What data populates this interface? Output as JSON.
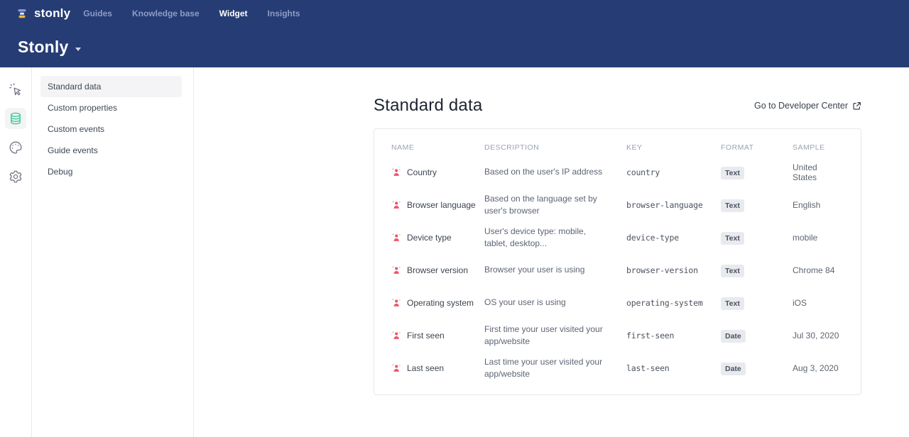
{
  "colors": {
    "navbar_bg": "#263c74",
    "accent_green": "#3fc98f",
    "row_icon_pink": "#f0536b",
    "badge_bg": "#e9eaee",
    "selected_bg": "#f4f4f6",
    "border": "#e7e8ec"
  },
  "topnav": {
    "logo_text": "stonly",
    "items": [
      {
        "label": "Guides",
        "active": false
      },
      {
        "label": "Knowledge base",
        "active": false
      },
      {
        "label": "Widget",
        "active": true
      },
      {
        "label": "Insights",
        "active": false
      }
    ]
  },
  "page_header": {
    "title": "Stonly"
  },
  "rail": {
    "icons": [
      "pointer-sparkle-icon",
      "database-icon",
      "palette-icon",
      "gear-icon"
    ],
    "active_icon": "database-icon"
  },
  "sidebar": {
    "items": [
      {
        "label": "Standard data",
        "selected": true
      },
      {
        "label": "Custom properties",
        "selected": false
      },
      {
        "label": "Custom events",
        "selected": false
      },
      {
        "label": "Guide events",
        "selected": false
      },
      {
        "label": "Debug",
        "selected": false
      }
    ]
  },
  "main": {
    "title": "Standard data",
    "link": {
      "label": "Go to Developer Center",
      "icon": "external-link-icon"
    },
    "table": {
      "columns": [
        "NAME",
        "DESCRIPTION",
        "KEY",
        "FORMAT",
        "SAMPLE"
      ],
      "row_icon": "user-attribute-icon",
      "rows": [
        {
          "name": "Country",
          "description": "Based on the user's IP address",
          "key": "country",
          "format": "Text",
          "sample": "United States"
        },
        {
          "name": "Browser language",
          "description": "Based on the language set by user's browser",
          "key": "browser-language",
          "format": "Text",
          "sample": "English"
        },
        {
          "name": "Device type",
          "description": "User's device type: mobile, tablet, desktop...",
          "key": "device-type",
          "format": "Text",
          "sample": "mobile"
        },
        {
          "name": "Browser version",
          "description": "Browser your user is using",
          "key": "browser-version",
          "format": "Text",
          "sample": "Chrome 84"
        },
        {
          "name": "Operating system",
          "description": "OS your user is using",
          "key": "operating-system",
          "format": "Text",
          "sample": "iOS"
        },
        {
          "name": "First seen",
          "description": "First time your user visited your app/website",
          "key": "first-seen",
          "format": "Date",
          "sample": "Jul 30, 2020"
        },
        {
          "name": "Last seen",
          "description": "Last time your user visited your app/website",
          "key": "last-seen",
          "format": "Date",
          "sample": "Aug 3, 2020"
        }
      ]
    }
  }
}
